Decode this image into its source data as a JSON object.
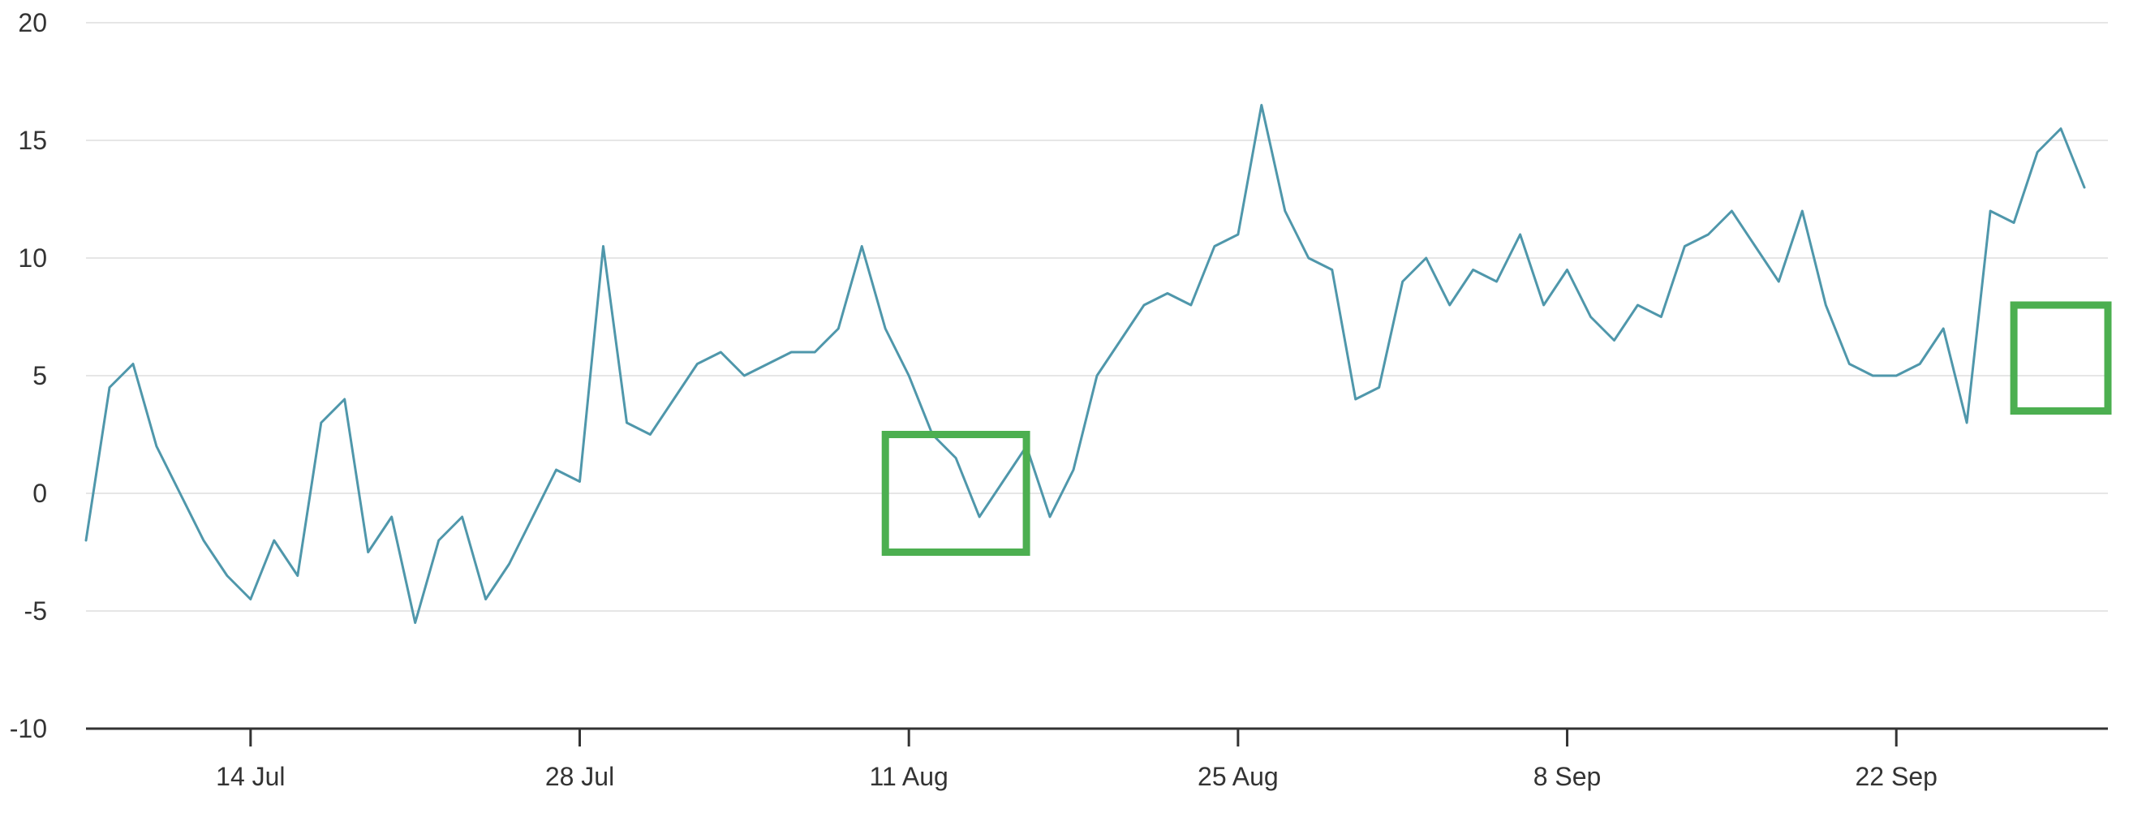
{
  "chart_data": {
    "type": "line",
    "title": "",
    "xlabel": "",
    "ylabel": "",
    "ylim": [
      -10,
      20
    ],
    "yticks": [
      20,
      15,
      10,
      5,
      0,
      -5,
      -10
    ],
    "xlim": [
      "2025-07-07",
      "2025-10-01"
    ],
    "xticks": [
      {
        "date": "2025-07-14",
        "label": "14 Jul"
      },
      {
        "date": "2025-07-28",
        "label": "28 Jul"
      },
      {
        "date": "2025-08-11",
        "label": "11 Aug"
      },
      {
        "date": "2025-08-25",
        "label": "25 Aug"
      },
      {
        "date": "2025-09-08",
        "label": "8 Sep"
      },
      {
        "date": "2025-09-22",
        "label": "22 Sep"
      }
    ],
    "grid": true,
    "colors": {
      "line": "#4f97ab",
      "highlight": "#4caf50",
      "grid": "#e6e6e6",
      "axis": "#333333"
    },
    "series": [
      {
        "x": [
          "2025-07-07",
          "2025-07-08",
          "2025-07-09",
          "2025-07-10",
          "2025-07-11",
          "2025-07-12",
          "2025-07-13",
          "2025-07-14",
          "2025-07-15",
          "2025-07-16",
          "2025-07-17",
          "2025-07-18",
          "2025-07-19",
          "2025-07-20",
          "2025-07-21",
          "2025-07-22",
          "2025-07-23",
          "2025-07-24",
          "2025-07-25",
          "2025-07-26",
          "2025-07-27",
          "2025-07-28",
          "2025-07-29",
          "2025-07-30",
          "2025-07-31",
          "2025-08-01",
          "2025-08-02",
          "2025-08-03",
          "2025-08-04",
          "2025-08-05",
          "2025-08-06",
          "2025-08-07",
          "2025-08-08",
          "2025-08-09",
          "2025-08-10",
          "2025-08-11",
          "2025-08-12",
          "2025-08-13",
          "2025-08-14",
          "2025-08-15",
          "2025-08-16",
          "2025-08-17",
          "2025-08-18",
          "2025-08-19",
          "2025-08-20",
          "2025-08-21",
          "2025-08-22",
          "2025-08-23",
          "2025-08-24",
          "2025-08-25",
          "2025-08-26",
          "2025-08-27",
          "2025-08-28",
          "2025-08-29",
          "2025-08-30",
          "2025-08-31",
          "2025-09-01",
          "2025-09-02",
          "2025-09-03",
          "2025-09-04",
          "2025-09-05",
          "2025-09-06",
          "2025-09-07",
          "2025-09-08",
          "2025-09-09",
          "2025-09-10",
          "2025-09-11",
          "2025-09-12",
          "2025-09-13",
          "2025-09-14",
          "2025-09-15",
          "2025-09-16",
          "2025-09-17",
          "2025-09-18",
          "2025-09-19",
          "2025-09-20",
          "2025-09-21",
          "2025-09-22",
          "2025-09-23",
          "2025-09-24",
          "2025-09-25",
          "2025-09-26",
          "2025-09-27",
          "2025-09-28",
          "2025-09-29",
          "2025-09-30"
        ],
        "values": [
          -2.0,
          4.5,
          5.5,
          2.0,
          0.0,
          -2.0,
          -3.5,
          -4.5,
          -2.0,
          -3.5,
          3.0,
          4.0,
          -2.5,
          -1.0,
          -5.5,
          -2.0,
          -1.0,
          -4.5,
          -3.0,
          -1.0,
          1.0,
          0.5,
          10.5,
          3.0,
          2.5,
          4.0,
          5.5,
          6.0,
          5.0,
          5.5,
          6.0,
          6.0,
          7.0,
          10.5,
          7.0,
          5.0,
          2.5,
          1.5,
          -1.0,
          0.5,
          2.0,
          -1.0,
          1.0,
          5.0,
          6.5,
          8.0,
          8.5,
          8.0,
          10.5,
          11.0,
          16.5,
          12.0,
          10.0,
          9.5,
          4.0,
          4.5,
          9.0,
          10.0,
          8.0,
          9.5,
          9.0,
          11.0,
          8.0,
          9.5,
          7.5,
          6.5,
          8.0,
          7.5,
          10.5,
          11.0,
          12.0,
          10.5,
          9.0,
          12.0,
          8.0,
          5.5,
          5.0,
          5.0,
          5.5,
          7.0,
          3.0,
          12.0,
          11.5,
          14.5,
          15.5,
          13.0
        ]
      }
    ],
    "highlights": [
      {
        "x0": "2025-08-10",
        "x1": "2025-08-16",
        "y0": -2.5,
        "y1": 2.5
      },
      {
        "x0": "2025-09-27",
        "x1": "2025-10-01",
        "y0": 3.5,
        "y1": 8.0
      }
    ]
  }
}
